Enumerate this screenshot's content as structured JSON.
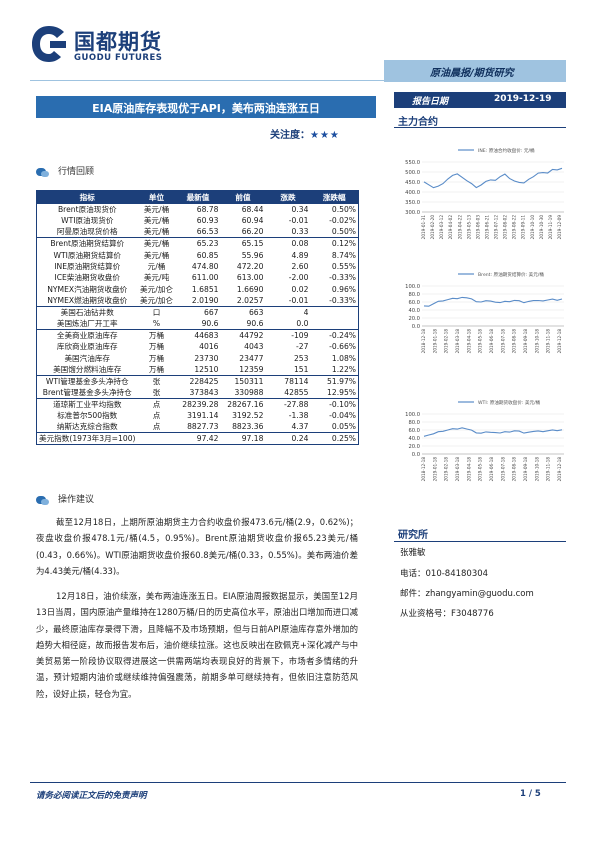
{
  "header": {
    "logo_cn": "国都期货",
    "logo_en": "GUODU FUTURES",
    "category": "原油晨报/期货研究",
    "title": "EIA原油库存表现优于API，美布两油连涨五日",
    "attention_label": "关注度：",
    "attention_stars": "★★★",
    "date_label": "报告日期",
    "date_value": "2019-12-19",
    "contract_label": "主力合约"
  },
  "review_section": {
    "heading": "行情回顾"
  },
  "table": {
    "columns": [
      "指标",
      "单位",
      "最新值",
      "前值",
      "涨跌",
      "涨跌幅"
    ],
    "rows": [
      [
        "Brent原油现货价",
        "美元/桶",
        "68.78",
        "68.44",
        "0.34",
        "0.50%"
      ],
      [
        "WTI原油现货价",
        "美元/桶",
        "60.93",
        "60.94",
        "-0.01",
        "-0.02%"
      ],
      [
        "阿曼原油现货价格",
        "美元/桶",
        "66.53",
        "66.20",
        "0.33",
        "0.50%"
      ],
      [
        "Brent原油期货结算价",
        "美元/桶",
        "65.23",
        "65.15",
        "0.08",
        "0.12%"
      ],
      [
        "WTI原油期货结算价",
        "美元/桶",
        "60.85",
        "55.96",
        "4.89",
        "8.74%"
      ],
      [
        "INE原油期货结算价",
        "元/桶",
        "474.80",
        "472.20",
        "2.60",
        "0.55%"
      ],
      [
        "ICE柴油期货收盘价",
        "美元/吨",
        "611.00",
        "613.00",
        "-2.00",
        "-0.33%"
      ],
      [
        "NYMEX汽油期货收盘价",
        "美元/加仑",
        "1.6851",
        "1.6690",
        "0.02",
        "0.96%"
      ],
      [
        "NYMEX燃油期货收盘价",
        "美元/加仑",
        "2.0190",
        "2.0257",
        "-0.01",
        "-0.33%"
      ],
      [
        "美国石油钻井数",
        "口",
        "667",
        "663",
        "4",
        ""
      ],
      [
        "美国炼油厂开工率",
        "%",
        "90.6",
        "90.6",
        "0.0",
        ""
      ],
      [
        "全美商业原油库存",
        "万桶",
        "44683",
        "44792",
        "-109",
        "-0.24%"
      ],
      [
        "库欣商业原油库存",
        "万桶",
        "4016",
        "4043",
        "-27",
        "-0.66%"
      ],
      [
        "美国汽油库存",
        "万桶",
        "23730",
        "23477",
        "253",
        "1.08%"
      ],
      [
        "美国馏分燃料油库存",
        "万桶",
        "12510",
        "12359",
        "151",
        "1.22%"
      ],
      [
        "WTI管理基金多头净持仓",
        "张",
        "228425",
        "150311",
        "78114",
        "51.97%"
      ],
      [
        "Brent管理基金多头净持仓",
        "张",
        "373843",
        "330988",
        "42855",
        "12.95%"
      ],
      [
        "道琼斯工业平均指数",
        "点",
        "28239.28",
        "28267.16",
        "-27.88",
        "-0.10%"
      ],
      [
        "标准普尔500指数",
        "点",
        "3191.14",
        "3192.52",
        "-1.38",
        "-0.04%"
      ],
      [
        "纳斯达克综合指数",
        "点",
        "8827.73",
        "8823.36",
        "4.37",
        "0.05%"
      ],
      [
        "美元指数(1973年3月=100)",
        "",
        "97.42",
        "97.18",
        "0.24",
        "0.25%"
      ]
    ]
  },
  "advice_section": {
    "heading": "操作建议",
    "p1": "截至12月18日，上期所原油期货主力合约收盘价报473.6元/桶(2.9，0.62%)；夜盘收盘价报478.1元/桶(4.5，0.95%)。Brent原油期货收盘价报65.23美元/桶(0.43，0.66%)。WTI原油期货收盘价报60.8美元/桶(0.33，0.55%)。美布两油价差为4.43美元/桶(4.33)。",
    "p2": "12月18日，油价续涨，美布两油连涨五日。EIA原油周报数据显示，美国至12月13日当周，国内原油产量维持在1280万桶/日的历史高位水平，原油出口增加而进口减少，最终原油库存录得下滑，且降幅不及市场预期，但与日前API原油库存意外增加的趋势大相径庭，故而报告发布后，油价继续拉涨。这也反映出在欧佩克+深化减产与中美贸易第一阶段协议取得进展这一供需两端均表现良好的背景下，市场者多情绪的升温，预计短期内油价或继续维持偏强震荡，前期多单可继续持有，但依旧注意防范风险，设好止损，轻仓为宜。"
  },
  "charts": [
    {
      "legend": "INE: 原油合约收盘价: 元/桶",
      "yticks": [
        "550.0",
        "500.0",
        "450.0",
        "400.0",
        "350.0",
        "300.0"
      ],
      "ylim": [
        300,
        550
      ],
      "x": [
        "2019-01-31",
        "2019-02-20",
        "2019-03-12",
        "2019-04-02",
        "2019-04-22",
        "2019-05-13",
        "2019-06-03",
        "2019-06-21",
        "2019-07-12",
        "2019-08-02",
        "2019-08-22",
        "2019-09-11",
        "2019-10-10",
        "2019-10-30",
        "2019-11-19",
        "2019-12-09"
      ]
    },
    {
      "legend": "Brent: 原油期货结算价: 美元/桶",
      "yticks": [
        "100.0",
        "80.0",
        "60.0",
        "40.0",
        "20.0",
        "0.0"
      ],
      "ylim": [
        0,
        100
      ],
      "x": [
        "2018-12-18",
        "2019-01-18",
        "2019-02-18",
        "2019-03-18",
        "2019-04-18",
        "2019-05-18",
        "2019-06-18",
        "2019-07-18",
        "2019-08-18",
        "2019-09-18",
        "2019-10-18",
        "2019-11-18",
        "2019-12-18"
      ]
    },
    {
      "legend": "WTI: 原油期货收盘价: 美元/桶",
      "yticks": [
        "100.0",
        "80.0",
        "60.0",
        "40.0",
        "20.0",
        "0.0"
      ],
      "ylim": [
        0,
        100
      ],
      "x": [
        "2018-12-18",
        "2019-01-18",
        "2019-02-18",
        "2019-03-18",
        "2019-04-18",
        "2019-05-18",
        "2019-06-18",
        "2019-07-18",
        "2019-08-18",
        "2019-09-18",
        "2019-10-18",
        "2019-11-18",
        "2019-12-18"
      ]
    }
  ],
  "research": {
    "title": "研究所",
    "name": "张雅敏",
    "phone": "电话：010-84180304",
    "email": "邮件：zhangyamin@guodu.com",
    "license": "从业资格号：F3048776"
  },
  "footer": {
    "disclaimer": "请务必阅读正文后的免责声明",
    "page": "1 / 5"
  },
  "colors": {
    "brand": "#1c3f7a",
    "accent": "#2a6db0",
    "band": "#9fc3e0",
    "line": "#5a8cc8"
  }
}
